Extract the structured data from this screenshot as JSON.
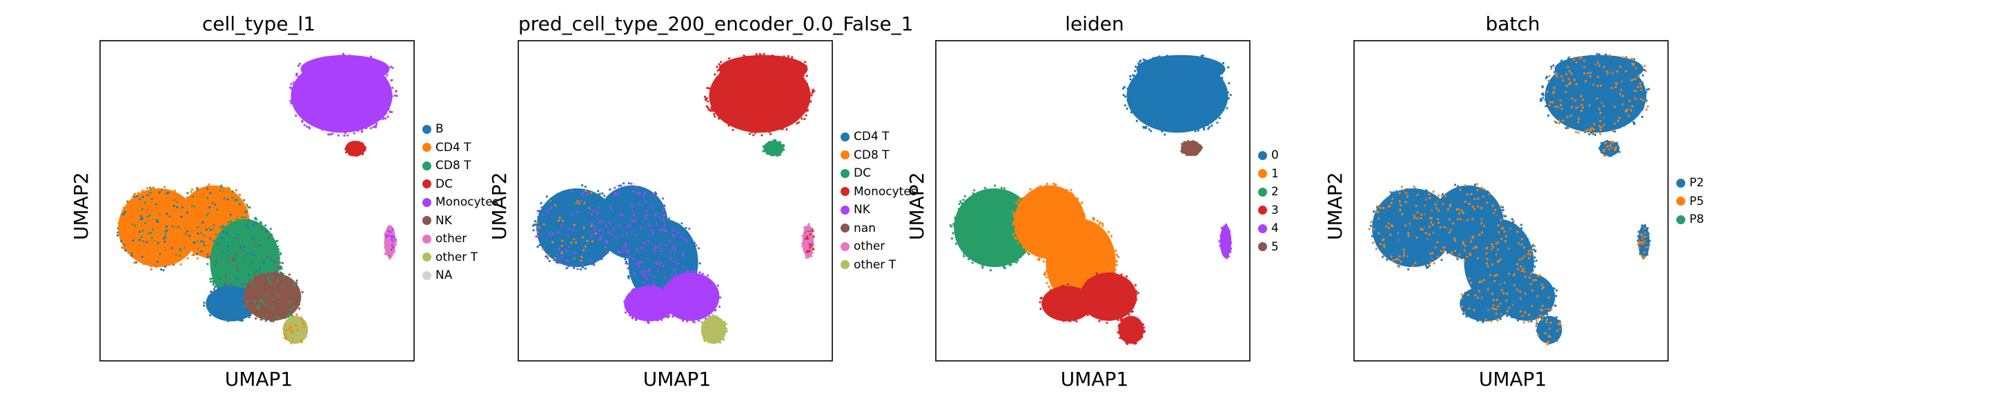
{
  "chart_data": [
    {
      "type": "scatter",
      "title": "cell_type_l1",
      "xlabel": "UMAP1",
      "ylabel": "UMAP2",
      "grid": false,
      "legend_placement": "right",
      "legend": [
        {
          "label": "B",
          "color": "#1f77b4"
        },
        {
          "label": "CD4 T",
          "color": "#ff7f0e"
        },
        {
          "label": "CD8 T",
          "color": "#279e68"
        },
        {
          "label": "DC",
          "color": "#d62728"
        },
        {
          "label": "Monocytes",
          "color": "#aa40fc"
        },
        {
          "label": "NK",
          "color": "#8c564b"
        },
        {
          "label": "other",
          "color": "#e377c2"
        },
        {
          "label": "other T",
          "color": "#b5bd61"
        },
        {
          "label": "NA",
          "color": "#d3d3d3"
        }
      ],
      "regions": [
        {
          "cluster": "upper",
          "color": "#aa40fc"
        },
        {
          "cluster": "upper-tip",
          "color": "#d62728"
        },
        {
          "cluster": "left-lobe",
          "color": "#ff7f0e",
          "mix": [
            "#279e68",
            "#1f77b4"
          ]
        },
        {
          "cluster": "middle-lobe",
          "color": "#ff7f0e",
          "mix": [
            "#279e68",
            "#1f77b4"
          ]
        },
        {
          "cluster": "center",
          "color": "#279e68",
          "mix": [
            "#1f77b4",
            "#8c564b"
          ]
        },
        {
          "cluster": "lower-left",
          "color": "#1f77b4"
        },
        {
          "cluster": "lower-right",
          "color": "#8c564b",
          "mix": [
            "#279e68"
          ]
        },
        {
          "cluster": "tail",
          "color": "#b5bd61",
          "mix": [
            "#ff7f0e"
          ]
        },
        {
          "cluster": "small-right",
          "color": "#e377c2",
          "mix": [
            "#aa40fc"
          ]
        }
      ]
    },
    {
      "type": "scatter",
      "title": "pred_cell_type_200_encoder_0.0_False_1",
      "xlabel": "UMAP1",
      "ylabel": "UMAP2",
      "grid": false,
      "legend_placement": "right",
      "legend": [
        {
          "label": "CD4 T",
          "color": "#1f77b4"
        },
        {
          "label": "CD8 T",
          "color": "#ff7f0e"
        },
        {
          "label": "DC",
          "color": "#279e68"
        },
        {
          "label": "Monocytes",
          "color": "#d62728"
        },
        {
          "label": "NK",
          "color": "#aa40fc"
        },
        {
          "label": "nan",
          "color": "#8c564b"
        },
        {
          "label": "other",
          "color": "#e377c2"
        },
        {
          "label": "other T",
          "color": "#b5bd61"
        }
      ],
      "regions": [
        {
          "cluster": "upper",
          "color": "#d62728"
        },
        {
          "cluster": "upper-tip",
          "color": "#279e68"
        },
        {
          "cluster": "left-lobe",
          "color": "#1f77b4",
          "mix": [
            "#aa40fc",
            "#ff7f0e"
          ]
        },
        {
          "cluster": "middle-lobe",
          "color": "#1f77b4",
          "mix": [
            "#aa40fc"
          ]
        },
        {
          "cluster": "center",
          "color": "#1f77b4",
          "mix": [
            "#aa40fc"
          ]
        },
        {
          "cluster": "lower-left",
          "color": "#aa40fc"
        },
        {
          "cluster": "lower-right",
          "color": "#aa40fc"
        },
        {
          "cluster": "tail",
          "color": "#b5bd61"
        },
        {
          "cluster": "small-right",
          "color": "#e377c2",
          "mix": [
            "#d62728"
          ]
        }
      ]
    },
    {
      "type": "scatter",
      "title": "leiden",
      "xlabel": "UMAP1",
      "ylabel": "UMAP2",
      "grid": false,
      "legend_placement": "right",
      "legend": [
        {
          "label": "0",
          "color": "#1f77b4"
        },
        {
          "label": "1",
          "color": "#ff7f0e"
        },
        {
          "label": "2",
          "color": "#279e68"
        },
        {
          "label": "3",
          "color": "#d62728"
        },
        {
          "label": "4",
          "color": "#aa40fc"
        },
        {
          "label": "5",
          "color": "#8c564b"
        }
      ],
      "regions": [
        {
          "cluster": "upper",
          "color": "#1f77b4"
        },
        {
          "cluster": "upper-tip",
          "color": "#8c564b"
        },
        {
          "cluster": "left-lobe",
          "color": "#279e68"
        },
        {
          "cluster": "middle-lobe",
          "color": "#ff7f0e"
        },
        {
          "cluster": "center",
          "color": "#ff7f0e"
        },
        {
          "cluster": "lower-left",
          "color": "#d62728"
        },
        {
          "cluster": "lower-right",
          "color": "#d62728"
        },
        {
          "cluster": "tail",
          "color": "#d62728"
        },
        {
          "cluster": "small-right",
          "color": "#aa40fc"
        }
      ]
    },
    {
      "type": "scatter",
      "title": "batch",
      "xlabel": "UMAP1",
      "ylabel": "UMAP2",
      "grid": false,
      "legend_placement": "right",
      "legend": [
        {
          "label": "P2",
          "color": "#1f77b4"
        },
        {
          "label": "P5",
          "color": "#ff7f0e"
        },
        {
          "label": "P8",
          "color": "#279e68"
        }
      ],
      "regions": [
        {
          "cluster": "upper",
          "color": "#1f77b4",
          "mix": [
            "#ff7f0e"
          ]
        },
        {
          "cluster": "upper-tip",
          "color": "#1f77b4",
          "mix": [
            "#ff7f0e"
          ]
        },
        {
          "cluster": "left-lobe",
          "color": "#1f77b4",
          "mix": [
            "#ff7f0e"
          ]
        },
        {
          "cluster": "middle-lobe",
          "color": "#1f77b4",
          "mix": [
            "#ff7f0e"
          ]
        },
        {
          "cluster": "center",
          "color": "#1f77b4",
          "mix": [
            "#ff7f0e"
          ]
        },
        {
          "cluster": "lower-left",
          "color": "#1f77b4",
          "mix": [
            "#ff7f0e"
          ]
        },
        {
          "cluster": "lower-right",
          "color": "#1f77b4",
          "mix": [
            "#ff7f0e"
          ]
        },
        {
          "cluster": "tail",
          "color": "#1f77b4",
          "mix": [
            "#ff7f0e"
          ]
        },
        {
          "cluster": "small-right",
          "color": "#1f77b4",
          "mix": [
            "#ff7f0e"
          ]
        }
      ]
    }
  ]
}
